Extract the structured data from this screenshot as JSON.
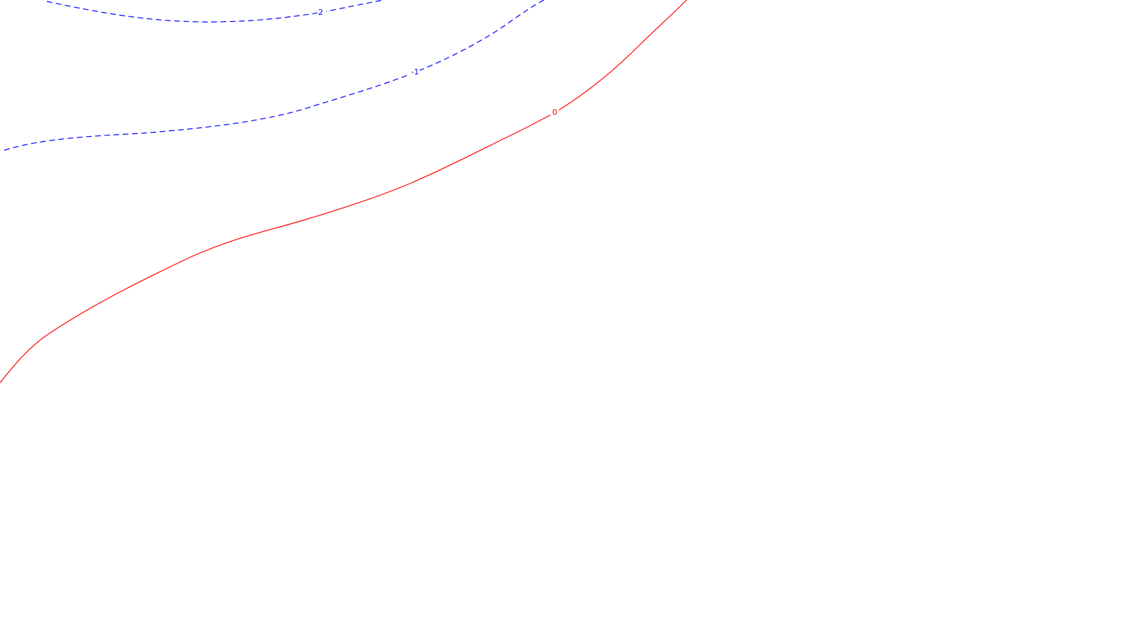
{
  "contours": [
    {
      "id": "contour-minus-2",
      "label": "-2",
      "level": -2,
      "style": "dashed",
      "color": "#0000ff"
    },
    {
      "id": "contour-minus-1",
      "label": "-1",
      "level": -1,
      "style": "dashed",
      "color": "#0000ff"
    },
    {
      "id": "contour-zero",
      "label": "0",
      "level": 0,
      "style": "solid",
      "color": "#ff0000"
    }
  ],
  "colors": {
    "background": "#ffffff",
    "negative": "#0000ff",
    "zero": "#ff0000"
  }
}
